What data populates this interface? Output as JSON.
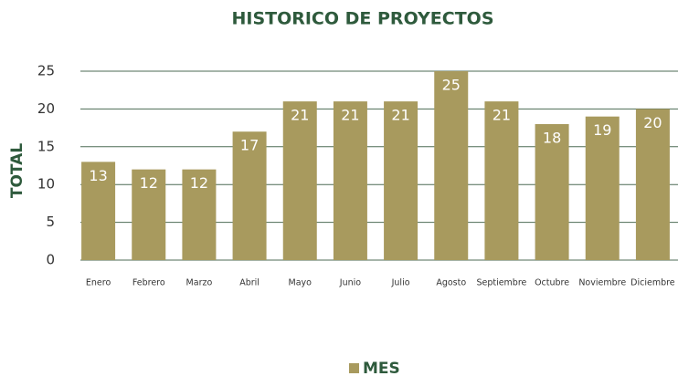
{
  "chart_data": {
    "type": "bar",
    "title": "HISTORICO DE PROYECTOS",
    "y_label": "TOTAL",
    "categories": [
      "Enero",
      "Febrero",
      "Marzo",
      "Abril",
      "Mayo",
      "Junio",
      "Julio",
      "Agosto",
      "Septiembre",
      "Octubre",
      "Noviembre",
      "Diciembre"
    ],
    "series": [
      {
        "name": "MES",
        "color": "#a89a5e",
        "values": [
          13,
          12,
          12,
          17,
          21,
          21,
          21,
          25,
          21,
          18,
          19,
          20
        ]
      }
    ],
    "ylim": [
      0,
      25
    ],
    "yticks": [
      0,
      5,
      10,
      15,
      20,
      25
    ],
    "grid": true,
    "legend": "bottom"
  }
}
